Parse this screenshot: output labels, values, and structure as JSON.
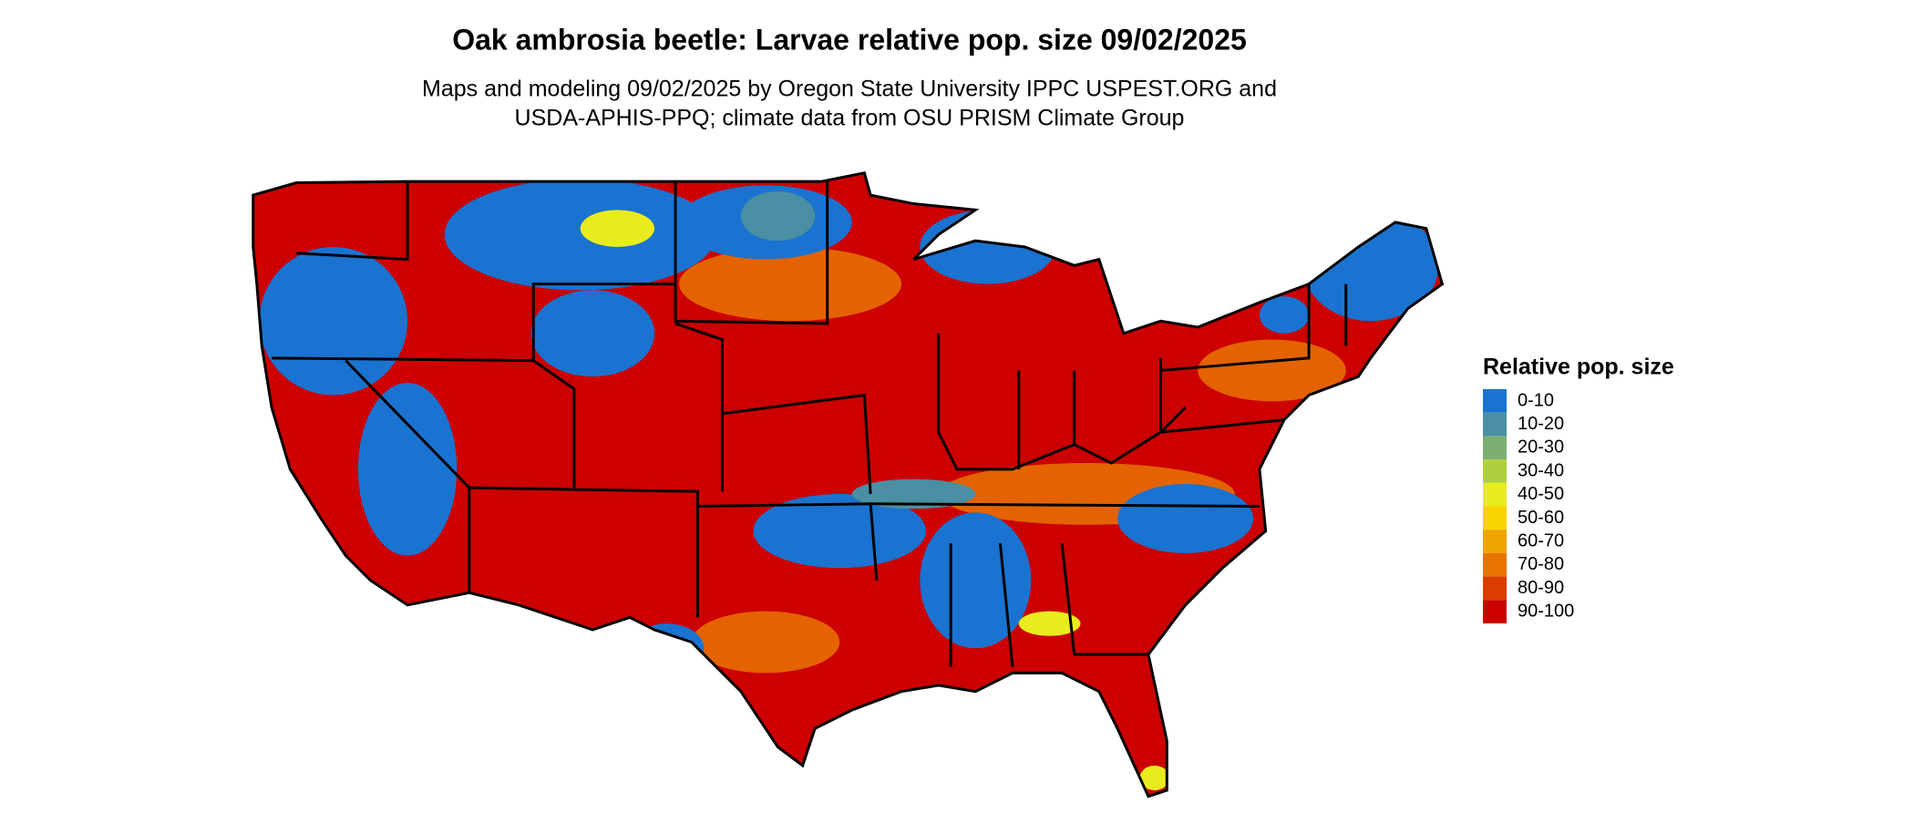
{
  "title": "Oak ambrosia beetle: Larvae relative pop. size 09/02/2025",
  "subtitle": [
    "Maps and modeling 09/02/2025 by Oregon State University IPPC USPEST.ORG and",
    "USDA-APHIS-PPQ; climate data from OSU PRISM Climate Group"
  ],
  "legend": {
    "title": "Relative pop. size",
    "items": [
      {
        "label": "0-10",
        "color": "#1a73d0"
      },
      {
        "label": "10-20",
        "color": "#4a8fa3"
      },
      {
        "label": "20-30",
        "color": "#7cae72"
      },
      {
        "label": "30-40",
        "color": "#afd03c"
      },
      {
        "label": "40-50",
        "color": "#e8ec1c"
      },
      {
        "label": "50-60",
        "color": "#f8d400"
      },
      {
        "label": "60-70",
        "color": "#f0a400"
      },
      {
        "label": "70-80",
        "color": "#e87400"
      },
      {
        "label": "80-90",
        "color": "#dc3c00"
      },
      {
        "label": "90-100",
        "color": "#cc0000"
      }
    ]
  }
}
